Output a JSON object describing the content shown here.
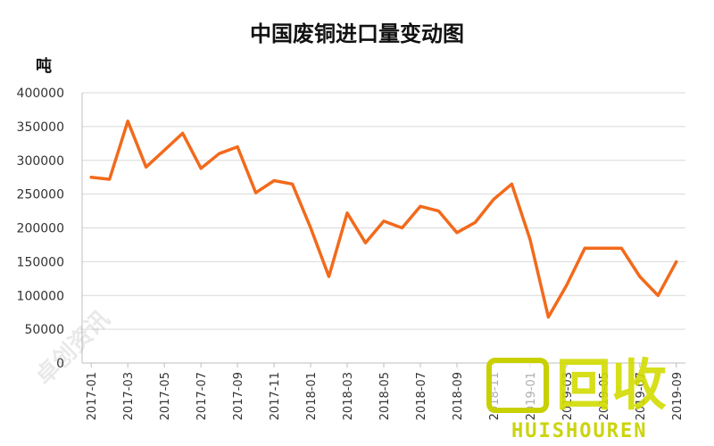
{
  "chart_data": {
    "type": "line",
    "title": "中国废铜进口量变动图",
    "ylabel": "吨",
    "xlabel": "",
    "ylim": [
      0,
      400000
    ],
    "yticks": [
      "0",
      "50000",
      "100000",
      "150000",
      "200000",
      "250000",
      "300000",
      "350000",
      "400000"
    ],
    "grid": true,
    "legend": "none",
    "line_color": "#f26a1b",
    "x": [
      "2017-01",
      "2017-02",
      "2017-03",
      "2017-04",
      "2017-05",
      "2017-06",
      "2017-07",
      "2017-08",
      "2017-09",
      "2017-10",
      "2017-11",
      "2017-12",
      "2018-01",
      "2018-02",
      "2018-03",
      "2018-04",
      "2018-05",
      "2018-06",
      "2018-07",
      "2018-08",
      "2018-09",
      "2018-10",
      "2018-11",
      "2018-12",
      "2019-01",
      "2019-02",
      "2019-03",
      "2019-04",
      "2019-05",
      "2019-06",
      "2019-07",
      "2019-08",
      "2019-09"
    ],
    "xtick_labels": [
      "2017-01",
      "2017-03",
      "2017-05",
      "2017-07",
      "2017-09",
      "2017-11",
      "2018-01",
      "2018-03",
      "2018-05",
      "2018-07",
      "2018-09",
      "2018-11",
      "2019-01",
      "2019-03",
      "2019-05",
      "2019-07",
      "2019-09"
    ],
    "values": [
      275000,
      272000,
      358000,
      290000,
      315000,
      340000,
      288000,
      310000,
      320000,
      252000,
      270000,
      265000,
      200000,
      128000,
      222000,
      178000,
      210000,
      200000,
      232000,
      225000,
      193000,
      208000,
      242000,
      265000,
      183000,
      68000,
      115000,
      170000,
      170000,
      170000,
      128000,
      100000,
      150000
    ]
  },
  "watermarks": {
    "left_text": "卓创资讯",
    "left_sub": "SCI99.COM",
    "right_badge": "回收",
    "right_sub": "HUISHOUREN"
  }
}
